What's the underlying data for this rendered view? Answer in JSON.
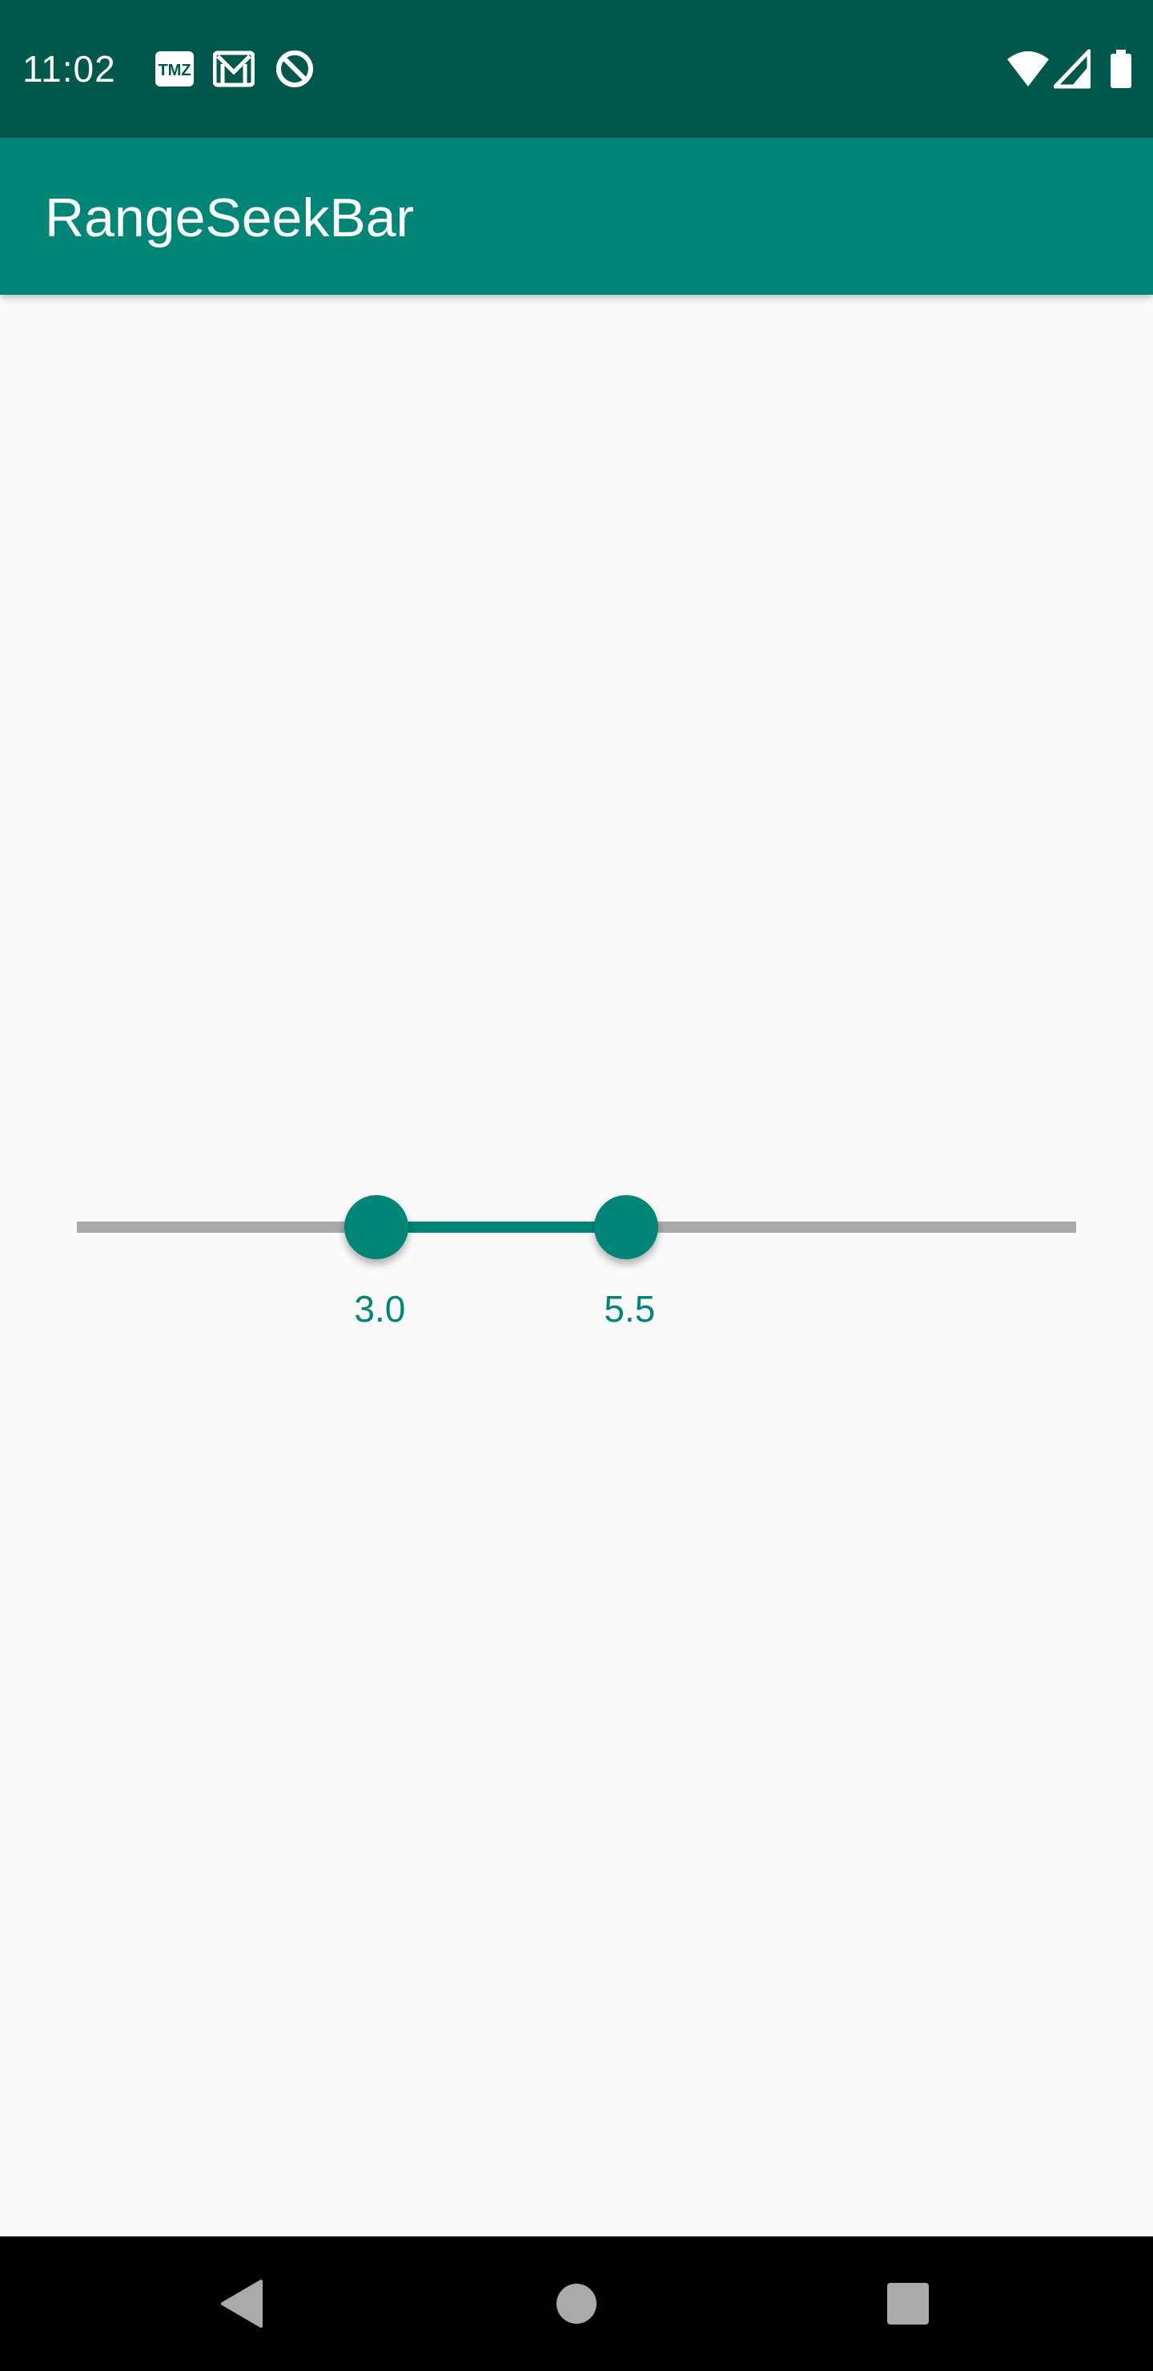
{
  "status_bar": {
    "time": "11:02",
    "notification_icons": [
      "tmz-icon",
      "gmail-icon",
      "do-not-disturb-icon"
    ],
    "system_icons": [
      "wifi-icon",
      "cellular-signal-icon",
      "battery-icon"
    ]
  },
  "app_bar": {
    "title": "RangeSeekBar"
  },
  "range_seekbar": {
    "min": 0,
    "max": 10,
    "selected_min": 3.0,
    "selected_max": 5.5,
    "min_label": "3.0",
    "max_label": "5.5"
  },
  "nav_bar": {
    "buttons": [
      "back-icon",
      "home-icon",
      "recents-icon"
    ]
  },
  "colors": {
    "status_bar": "#00574b",
    "primary": "#008577",
    "track_inactive": "#aaaaaa",
    "background": "#fafafa",
    "nav_bar": "#000000"
  }
}
